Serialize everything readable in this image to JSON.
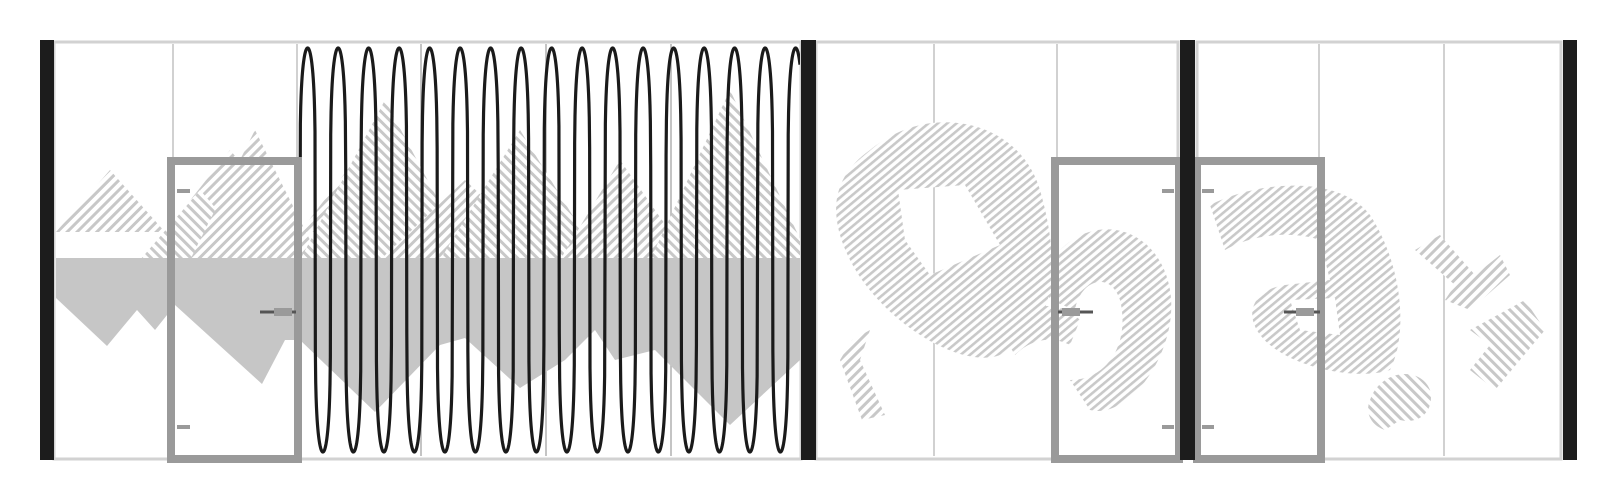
{
  "drawing": {
    "subject": "glass-partition-elevation",
    "colors": {
      "background": "#ffffff",
      "post": "#1c1c1c",
      "frame": "#cfcfcf",
      "glass_line": "#bdbdbd",
      "door_frame": "#9a9a9a",
      "handle": "#555555",
      "film": "#c6c6c6",
      "hatch": "#cccccc",
      "wave": "#1a1a1a"
    },
    "sections": [
      {
        "pattern": "mountains-and-waves",
        "door": "left-hinged"
      },
      {
        "pattern": "graffiti",
        "door": "right"
      },
      {
        "pattern": "graffiti",
        "door": "left"
      }
    ],
    "letters": [
      "r",
      "o",
      "s",
      "a",
      "e",
      "n",
      "a"
    ],
    "icons": [
      "door-handle-icon",
      "door-hinge-icon"
    ]
  }
}
